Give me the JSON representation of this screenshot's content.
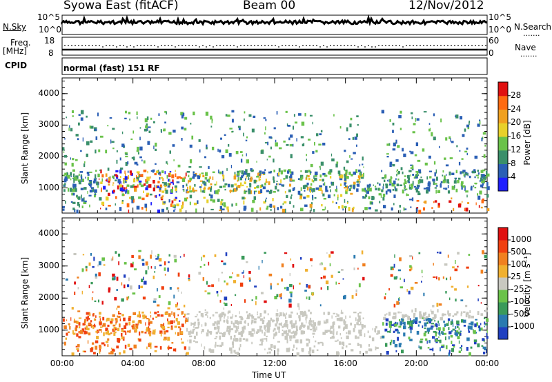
{
  "header": {
    "station": "Syowa East (fitACF)",
    "beam": "Beam 00",
    "date": "12/Nov/2012"
  },
  "side_labels": {
    "nsky": "N.Sky",
    "nsearch": "N.Search",
    "freq": "Freq.",
    "mhz": "[MHz]",
    "cpid": "CPID",
    "nave": "Nave",
    "dots": "......."
  },
  "noise_axis": {
    "top": "10^5",
    "bottom": "10^0"
  },
  "freq_axis": {
    "left": [
      "18",
      "8"
    ],
    "right": [
      "60",
      "0"
    ]
  },
  "cpid_text": "normal (fast) 151 RF",
  "chart_data": [
    {
      "type": "heatmap",
      "name": "power",
      "ylabel": "Slant Range [km]",
      "xlabel": "Time UT",
      "x_ticks": [
        "00:00",
        "04:00",
        "08:00",
        "12:00",
        "16:00",
        "20:00",
        "00:00"
      ],
      "y_ticks": [
        "1000",
        "2000",
        "3000",
        "4000"
      ],
      "ylim": [
        200,
        4500
      ],
      "colorbar": {
        "label": "Power [dB]",
        "ticks": [
          "4",
          "8",
          "12",
          "16",
          "20",
          "24",
          "28"
        ],
        "colors": [
          "#1f1fff",
          "#2b5fb5",
          "#3a8f6a",
          "#6ac24a",
          "#e8d02a",
          "#f0a020",
          "#ff6a10",
          "#e01010"
        ]
      }
    },
    {
      "type": "heatmap",
      "name": "velocity",
      "ylabel": "Slant Range [km]",
      "xlabel": "Time UT",
      "x_ticks": [
        "00:00",
        "04:00",
        "08:00",
        "12:00",
        "16:00",
        "20:00",
        "00:00"
      ],
      "y_ticks": [
        "1000",
        "2000",
        "3000",
        "4000"
      ],
      "ylim": [
        200,
        4500
      ],
      "colorbar": {
        "label": "Velocity [m s⁻¹]",
        "ticks": [
          "1000",
          "500",
          "100",
          "25",
          "-25",
          "-100",
          "-500",
          "-1000"
        ],
        "colors": [
          "#2040c0",
          "#2a7ab0",
          "#3a9a5a",
          "#6ac24a",
          "#c8c8c0",
          "#f0b030",
          "#f08020",
          "#f04010",
          "#e01010"
        ]
      }
    }
  ]
}
